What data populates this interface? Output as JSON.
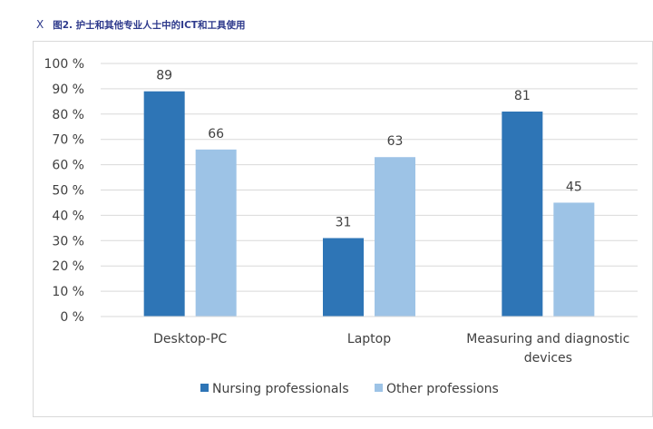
{
  "header": {
    "close_glyph": "X",
    "title": "图2. 护士和其他专业人士中的ICT和工具使用"
  },
  "chart_data": {
    "type": "bar",
    "categories": [
      [
        "Desktop-PC"
      ],
      [
        "Laptop"
      ],
      [
        "Measuring and diagnostic",
        "devices"
      ]
    ],
    "series": [
      {
        "name": "Nursing professionals",
        "values": [
          89,
          31,
          81
        ],
        "color": "#2e75b6"
      },
      {
        "name": "Other professions",
        "values": [
          66,
          63,
          45
        ],
        "color": "#9dc3e6"
      }
    ],
    "y_ticks": [
      "0 %",
      "10 %",
      "20 %",
      "30 %",
      "40 %",
      "50 %",
      "60 %",
      "70 %",
      "80 %",
      "90 %",
      "100 %"
    ],
    "ylim": [
      0,
      100
    ],
    "grid": true,
    "legend_position": "bottom",
    "colors": {
      "grid": "#d9d9d9",
      "text": "#404040",
      "title": "#2e3a8c"
    }
  }
}
